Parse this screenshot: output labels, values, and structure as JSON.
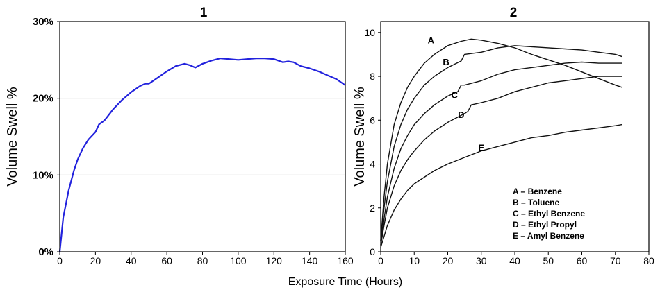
{
  "shared_xlabel": "Exposure Time (Hours)",
  "chart_data": [
    {
      "type": "line",
      "title": "1",
      "xlabel": "Exposure Time (Hours)",
      "ylabel": "Volume Swell %",
      "xlim": [
        0,
        160
      ],
      "ylim": [
        0,
        30
      ],
      "x_ticks": [
        0,
        20,
        40,
        60,
        80,
        100,
        120,
        140,
        160
      ],
      "y_ticks": [
        0,
        10,
        20,
        30
      ],
      "y_tick_labels": [
        "0%",
        "10%",
        "20%",
        "30%"
      ],
      "grid": "horizontal at 10% and 20%",
      "color": "#2222dd",
      "series": [
        {
          "x": [
            0,
            2,
            5,
            8,
            10,
            13,
            16,
            20,
            22,
            25,
            30,
            35,
            40,
            45,
            48,
            50,
            55,
            60,
            65,
            70,
            73,
            76,
            80,
            85,
            90,
            95,
            100,
            105,
            110,
            115,
            120,
            125,
            128,
            131,
            135,
            140,
            145,
            150,
            155,
            160
          ],
          "y": [
            0,
            4.5,
            8,
            10.6,
            12,
            13.5,
            14.6,
            15.6,
            16.6,
            17.1,
            18.6,
            19.8,
            20.8,
            21.6,
            21.9,
            21.9,
            22.7,
            23.5,
            24.2,
            24.5,
            24.3,
            24.0,
            24.5,
            24.9,
            25.2,
            25.1,
            25.0,
            25.1,
            25.2,
            25.2,
            25.1,
            24.7,
            24.8,
            24.7,
            24.2,
            23.9,
            23.5,
            23.0,
            22.5,
            21.7
          ]
        }
      ]
    },
    {
      "type": "line",
      "title": "2",
      "xlabel": "Exposure Time (Hours)",
      "ylabel": "Volume Swell %",
      "xlim": [
        0,
        80
      ],
      "ylim": [
        0,
        10.5
      ],
      "x_ticks": [
        0,
        10,
        20,
        30,
        40,
        50,
        60,
        70,
        80
      ],
      "y_ticks": [
        0,
        2,
        4,
        6,
        8,
        10
      ],
      "grid": "off",
      "legend_placement": "bottom-right",
      "legend": [
        "A – Benzene",
        "B – Toluene",
        "C – Ethyl Benzene",
        "D – Ethyl Propyl",
        "E – Amyl Benzene"
      ],
      "color": "#111111",
      "series": [
        {
          "name": "A",
          "x": [
            0,
            1,
            2,
            4,
            6,
            8,
            10,
            13,
            16,
            20,
            24,
            27,
            30,
            35,
            40,
            45,
            50,
            55,
            60,
            65,
            70,
            72
          ],
          "y": [
            0.5,
            2.5,
            4.0,
            5.8,
            6.8,
            7.5,
            8.0,
            8.6,
            9.0,
            9.4,
            9.6,
            9.7,
            9.65,
            9.5,
            9.3,
            9.0,
            8.75,
            8.5,
            8.2,
            7.9,
            7.6,
            7.5
          ]
        },
        {
          "name": "B",
          "x": [
            0,
            1,
            2,
            4,
            6,
            8,
            10,
            13,
            16,
            20,
            24,
            25,
            30,
            35,
            40,
            45,
            50,
            55,
            60,
            65,
            70,
            72
          ],
          "y": [
            0.5,
            2.0,
            3.2,
            4.8,
            5.8,
            6.5,
            7.0,
            7.6,
            8.0,
            8.4,
            8.7,
            9.0,
            9.1,
            9.3,
            9.4,
            9.35,
            9.3,
            9.25,
            9.2,
            9.1,
            9.0,
            8.9
          ]
        },
        {
          "name": "C",
          "x": [
            0,
            1,
            2,
            4,
            6,
            8,
            10,
            13,
            16,
            20,
            23,
            24,
            25,
            30,
            35,
            40,
            45,
            50,
            55,
            60,
            65,
            70,
            72
          ],
          "y": [
            0.3,
            1.5,
            2.5,
            3.8,
            4.7,
            5.3,
            5.8,
            6.3,
            6.7,
            7.1,
            7.3,
            7.6,
            7.6,
            7.8,
            8.1,
            8.3,
            8.4,
            8.5,
            8.6,
            8.65,
            8.6,
            8.6,
            8.6
          ]
        },
        {
          "name": "D",
          "x": [
            0,
            1,
            2,
            4,
            6,
            8,
            10,
            13,
            16,
            20,
            25,
            26,
            27,
            30,
            35,
            40,
            45,
            50,
            55,
            60,
            65,
            70,
            72
          ],
          "y": [
            0.3,
            1.2,
            2.0,
            3.0,
            3.7,
            4.2,
            4.6,
            5.1,
            5.5,
            5.9,
            6.3,
            6.4,
            6.7,
            6.8,
            7.0,
            7.3,
            7.5,
            7.7,
            7.8,
            7.9,
            8.0,
            8.0,
            8.0
          ]
        },
        {
          "name": "E",
          "x": [
            0,
            1,
            2,
            4,
            6,
            8,
            10,
            13,
            16,
            20,
            25,
            30,
            35,
            40,
            45,
            50,
            55,
            60,
            65,
            70,
            72
          ],
          "y": [
            0.2,
            0.7,
            1.2,
            1.9,
            2.4,
            2.8,
            3.1,
            3.4,
            3.7,
            4.0,
            4.3,
            4.6,
            4.8,
            5.0,
            5.2,
            5.3,
            5.45,
            5.55,
            5.65,
            5.75,
            5.8
          ]
        }
      ],
      "curve_labels": [
        {
          "text": "A",
          "x": 15,
          "y": 9.5
        },
        {
          "text": "B",
          "x": 19.5,
          "y": 8.5
        },
        {
          "text": "C",
          "x": 22,
          "y": 7.0
        },
        {
          "text": "D",
          "x": 24,
          "y": 6.1
        },
        {
          "text": "E",
          "x": 30,
          "y": 4.6
        }
      ]
    }
  ]
}
